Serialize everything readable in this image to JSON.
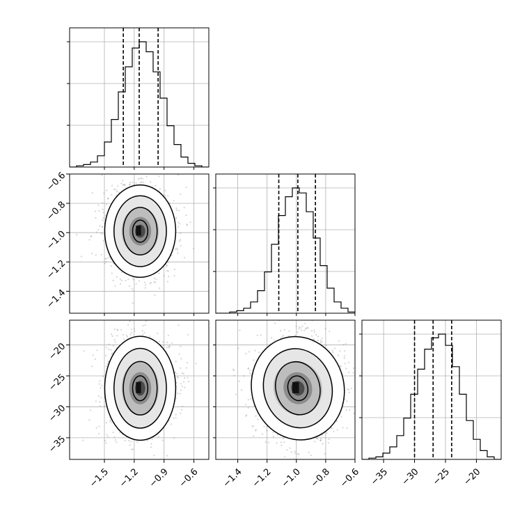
{
  "chart_data": {
    "type": "corner",
    "grid": true,
    "parameters": [
      {
        "range": [
          -1.85,
          -0.45
        ],
        "ticks": [
          -1.5,
          -1.2,
          -0.9,
          -0.6
        ],
        "tick_labels": [
          "−1.5",
          "−1.2",
          "−0.9",
          "−0.6"
        ],
        "quantiles": [
          -1.31,
          -1.15,
          -0.96
        ],
        "hist_edges": [
          -1.85,
          -1.78,
          -1.71,
          -1.64,
          -1.57,
          -1.5,
          -1.43,
          -1.36,
          -1.29,
          -1.22,
          -1.15,
          -1.08,
          -1.01,
          -0.94,
          -0.87,
          -0.8,
          -0.73,
          -0.66,
          -0.59,
          -0.52,
          -0.45
        ],
        "hist_counts": [
          0,
          1,
          2,
          4,
          9,
          20,
          38,
          60,
          80,
          95,
          100,
          92,
          76,
          55,
          33,
          18,
          8,
          3,
          1,
          0
        ]
      },
      {
        "range": [
          -1.55,
          -0.6
        ],
        "ticks": [
          -1.4,
          -1.2,
          -1.0,
          -0.8,
          -0.6
        ],
        "tick_labels": [
          "−1.4",
          "−1.2",
          "−1.0",
          "−0.8",
          "−0.6"
        ],
        "quantiles": [
          -1.12,
          -0.99,
          -0.87
        ],
        "hist_edges": [
          -1.55,
          -1.5025,
          -1.455,
          -1.4075,
          -1.36,
          -1.3125,
          -1.265,
          -1.2175,
          -1.17,
          -1.1225,
          -1.075,
          -1.0275,
          -0.98,
          -0.9325,
          -0.885,
          -0.8375,
          -0.79,
          -0.7425,
          -0.695,
          -0.6475,
          -0.6
        ],
        "hist_counts": [
          0,
          0,
          1,
          2,
          4,
          9,
          18,
          33,
          55,
          78,
          93,
          100,
          96,
          81,
          60,
          38,
          20,
          9,
          4,
          1
        ]
      },
      {
        "range": [
          -38.5,
          -16.0
        ],
        "ticks": [
          -35,
          -30,
          -25,
          -20
        ],
        "tick_labels": [
          "−35",
          "−30",
          "−25",
          "−20"
        ],
        "quantiles": [
          -30.0,
          -27.0,
          -24.0
        ],
        "hist_edges": [
          -38.5,
          -37.375,
          -36.25,
          -35.125,
          -34.0,
          -32.875,
          -31.75,
          -30.625,
          -29.5,
          -28.375,
          -27.25,
          -26.125,
          -25.0,
          -23.875,
          -22.75,
          -21.625,
          -20.5,
          -19.375,
          -18.25,
          -17.125,
          -16.0
        ],
        "hist_counts": [
          0,
          1,
          2,
          5,
          10,
          19,
          33,
          52,
          72,
          88,
          97,
          100,
          91,
          74,
          52,
          31,
          16,
          7,
          2,
          0
        ]
      }
    ],
    "density_blobs": [
      {
        "row": 1,
        "col": 0,
        "center": [
          -1.14,
          -0.99
        ],
        "spread": [
          0.17,
          0.15
        ],
        "tilt": 0.0
      },
      {
        "row": 2,
        "col": 0,
        "center": [
          -1.14,
          -27.0
        ],
        "spread": [
          0.17,
          4.0
        ],
        "tilt": 0.0
      },
      {
        "row": 2,
        "col": 1,
        "center": [
          -0.99,
          -27.0
        ],
        "spread": [
          0.15,
          4.0
        ],
        "tilt": 0.25
      }
    ]
  }
}
